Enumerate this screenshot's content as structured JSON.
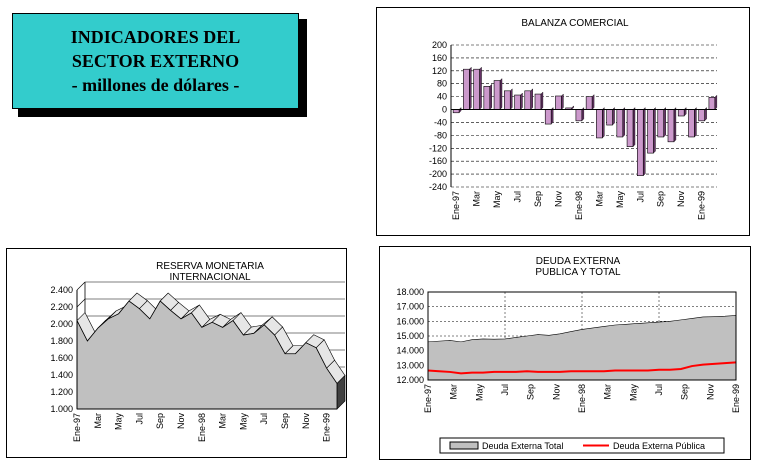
{
  "header": {
    "line1": "INDICADORES DEL",
    "line2": "SECTOR EXTERNO",
    "line3": "- millones de dólares -"
  },
  "colors": {
    "title_box": "#33cccc",
    "balanza_bar": "#cc99cc",
    "area_fill": "#c0c0c0",
    "deuda_publica_line": "#ff0000"
  },
  "chart_data": [
    {
      "id": "balanza",
      "type": "bar",
      "title": "BALANZA COMERCIAL",
      "ylim": [
        -240,
        200
      ],
      "yticks": [
        200,
        160,
        120,
        80,
        40,
        0,
        -40,
        -80,
        -120,
        -160,
        -200,
        -240
      ],
      "xtick_labels": [
        "Ene-97",
        "Mar",
        "May",
        "Jul",
        "Sep",
        "Nov",
        "Ene-98",
        "Mar",
        "May",
        "Jul",
        "Sep",
        "Nov",
        "Ene-99"
      ],
      "grid": true,
      "values": [
        -10,
        125,
        125,
        72,
        90,
        58,
        45,
        58,
        48,
        -45,
        42,
        5,
        -35,
        40,
        -88,
        -48,
        -85,
        -115,
        -205,
        -135,
        -85,
        -100,
        -20,
        -85,
        -35,
        38
      ]
    },
    {
      "id": "reserva",
      "type": "area",
      "title": "RESERVA MONETARIA INTERNACIONAL",
      "ylim": [
        1000,
        2400
      ],
      "yticks": [
        "2.400",
        "2.200",
        "2.000",
        "1.800",
        "1.600",
        "1.400",
        "1.200",
        "1.000"
      ],
      "xtick_labels": [
        "Ene-97",
        "Mar",
        "May",
        "Jul",
        "Sep",
        "Nov",
        "Ene-98",
        "Mar",
        "May",
        "Jul",
        "Sep",
        "Nov",
        "Ene-99"
      ],
      "grid": true,
      "values": [
        2040,
        1800,
        1950,
        2060,
        2120,
        2270,
        2180,
        2060,
        2270,
        2160,
        2060,
        2130,
        1960,
        2020,
        1960,
        2040,
        1870,
        1890,
        1990,
        1870,
        1650,
        1650,
        1780,
        1720,
        1480,
        1300
      ]
    },
    {
      "id": "deuda",
      "type": "area",
      "title": "DEUDA EXTERNA PUBLICA Y TOTAL",
      "ylim": [
        12000,
        18000
      ],
      "yticks": [
        "18.000",
        "17.000",
        "16.000",
        "15.000",
        "14.000",
        "13.000",
        "12.000"
      ],
      "xtick_labels": [
        "Ene-97",
        "Mar",
        "May",
        "Jul",
        "Sep",
        "Nov",
        "Ene-98",
        "Mar",
        "May",
        "Jul",
        "Sep",
        "Nov",
        "Ene-99"
      ],
      "grid": true,
      "legend": "bottom",
      "series": [
        {
          "name": "Deuda Externa Total",
          "values": [
            14600,
            14650,
            14700,
            14600,
            14750,
            14800,
            14780,
            14800,
            14900,
            15000,
            15100,
            15050,
            15150,
            15300,
            15450,
            15550,
            15650,
            15750,
            15800,
            15850,
            15900,
            15950,
            16000,
            16100,
            16200,
            16300,
            16320,
            16350,
            16400
          ]
        },
        {
          "name": "Deuda Externa Pública",
          "values": [
            12650,
            12600,
            12550,
            12450,
            12500,
            12500,
            12550,
            12550,
            12550,
            12600,
            12550,
            12550,
            12550,
            12600,
            12600,
            12600,
            12600,
            12650,
            12650,
            12650,
            12650,
            12700,
            12700,
            12750,
            12950,
            13050,
            13100,
            13150,
            13200
          ]
        }
      ]
    }
  ]
}
